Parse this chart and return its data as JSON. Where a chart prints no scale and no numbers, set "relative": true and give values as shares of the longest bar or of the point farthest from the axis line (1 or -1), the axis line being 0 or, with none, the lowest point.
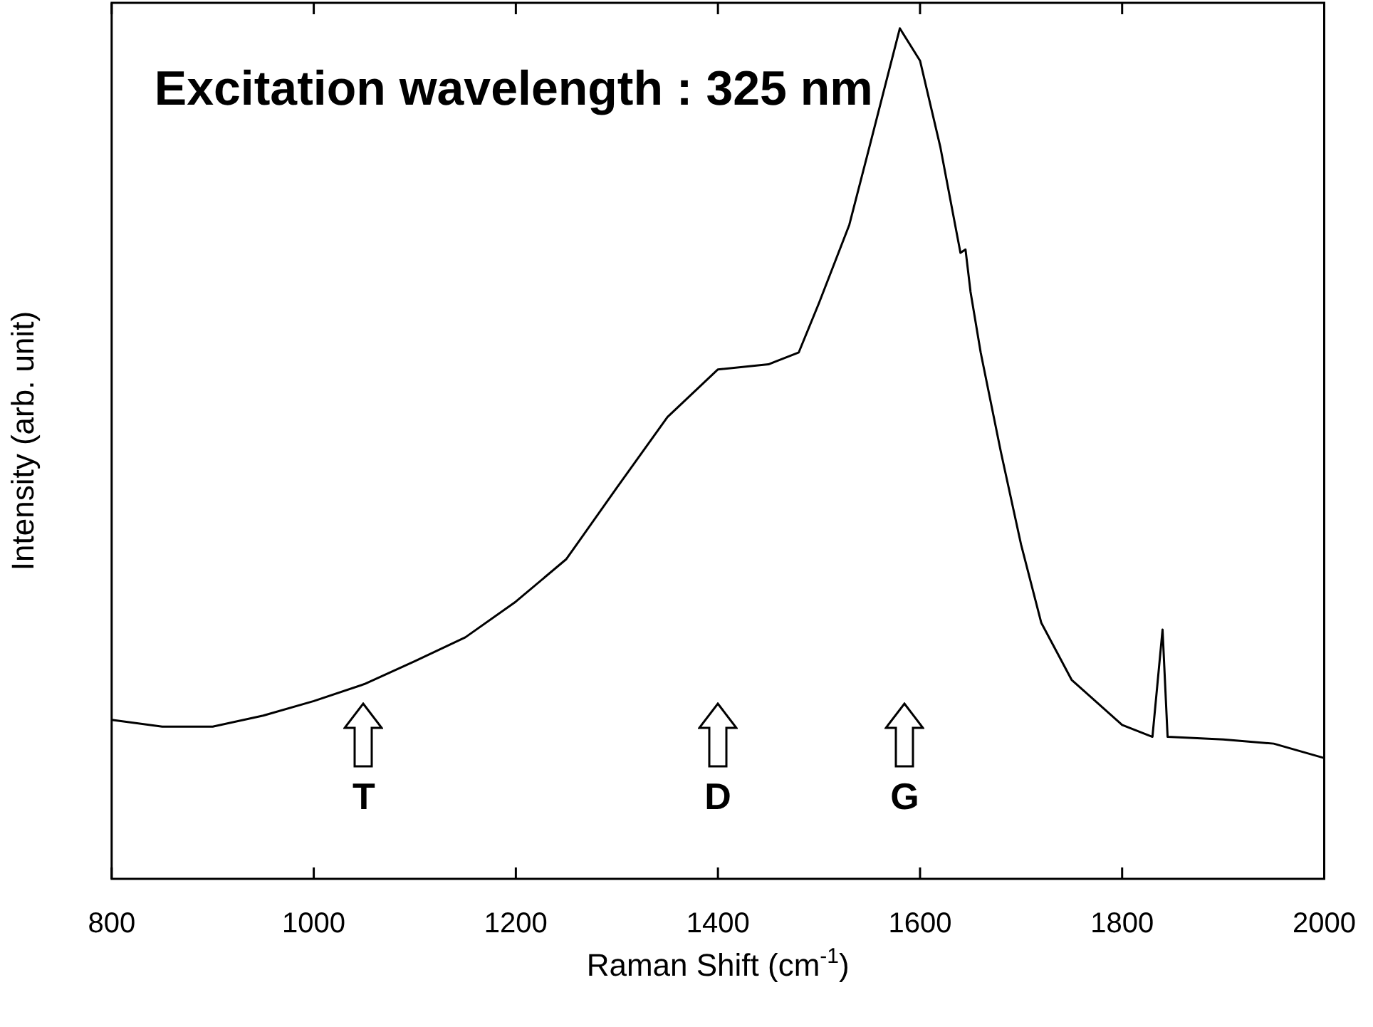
{
  "chart_data": {
    "type": "line",
    "relative": true,
    "title": "Excitation wavelength : 325 nm",
    "xlabel": "Raman Shift (cm$^{-1}$)",
    "ylabel": "Intensity (arb. unit)",
    "x": [
      800,
      850,
      900,
      950,
      1000,
      1050,
      1100,
      1150,
      1200,
      1250,
      1300,
      1350,
      1400,
      1450,
      1480,
      1500,
      1530,
      1550,
      1580,
      1600,
      1620,
      1640,
      1645,
      1650,
      1660,
      1680,
      1700,
      1720,
      1750,
      1800,
      1830,
      1840,
      1845,
      1900,
      1950,
      2000
    ],
    "series": [
      {
        "color": "#000000",
        "values": [
          0.187,
          0.179,
          0.179,
          0.192,
          0.209,
          0.229,
          0.256,
          0.284,
          0.326,
          0.376,
          0.46,
          0.543,
          0.599,
          0.605,
          0.619,
          0.677,
          0.769,
          0.861,
          1.0,
          0.962,
          0.861,
          0.736,
          0.74,
          0.69,
          0.619,
          0.502,
          0.393,
          0.301,
          0.234,
          0.181,
          0.167,
          0.293,
          0.167,
          0.164,
          0.159,
          0.142
        ]
      }
    ],
    "xlim": [
      800,
      2000
    ],
    "xticks": [
      800,
      1000,
      1200,
      1400,
      1600,
      1800,
      2000
    ],
    "annotations": [
      "T",
      "D",
      "G"
    ],
    "legend": false,
    "marker": "none",
    "line_style": "solid"
  }
}
